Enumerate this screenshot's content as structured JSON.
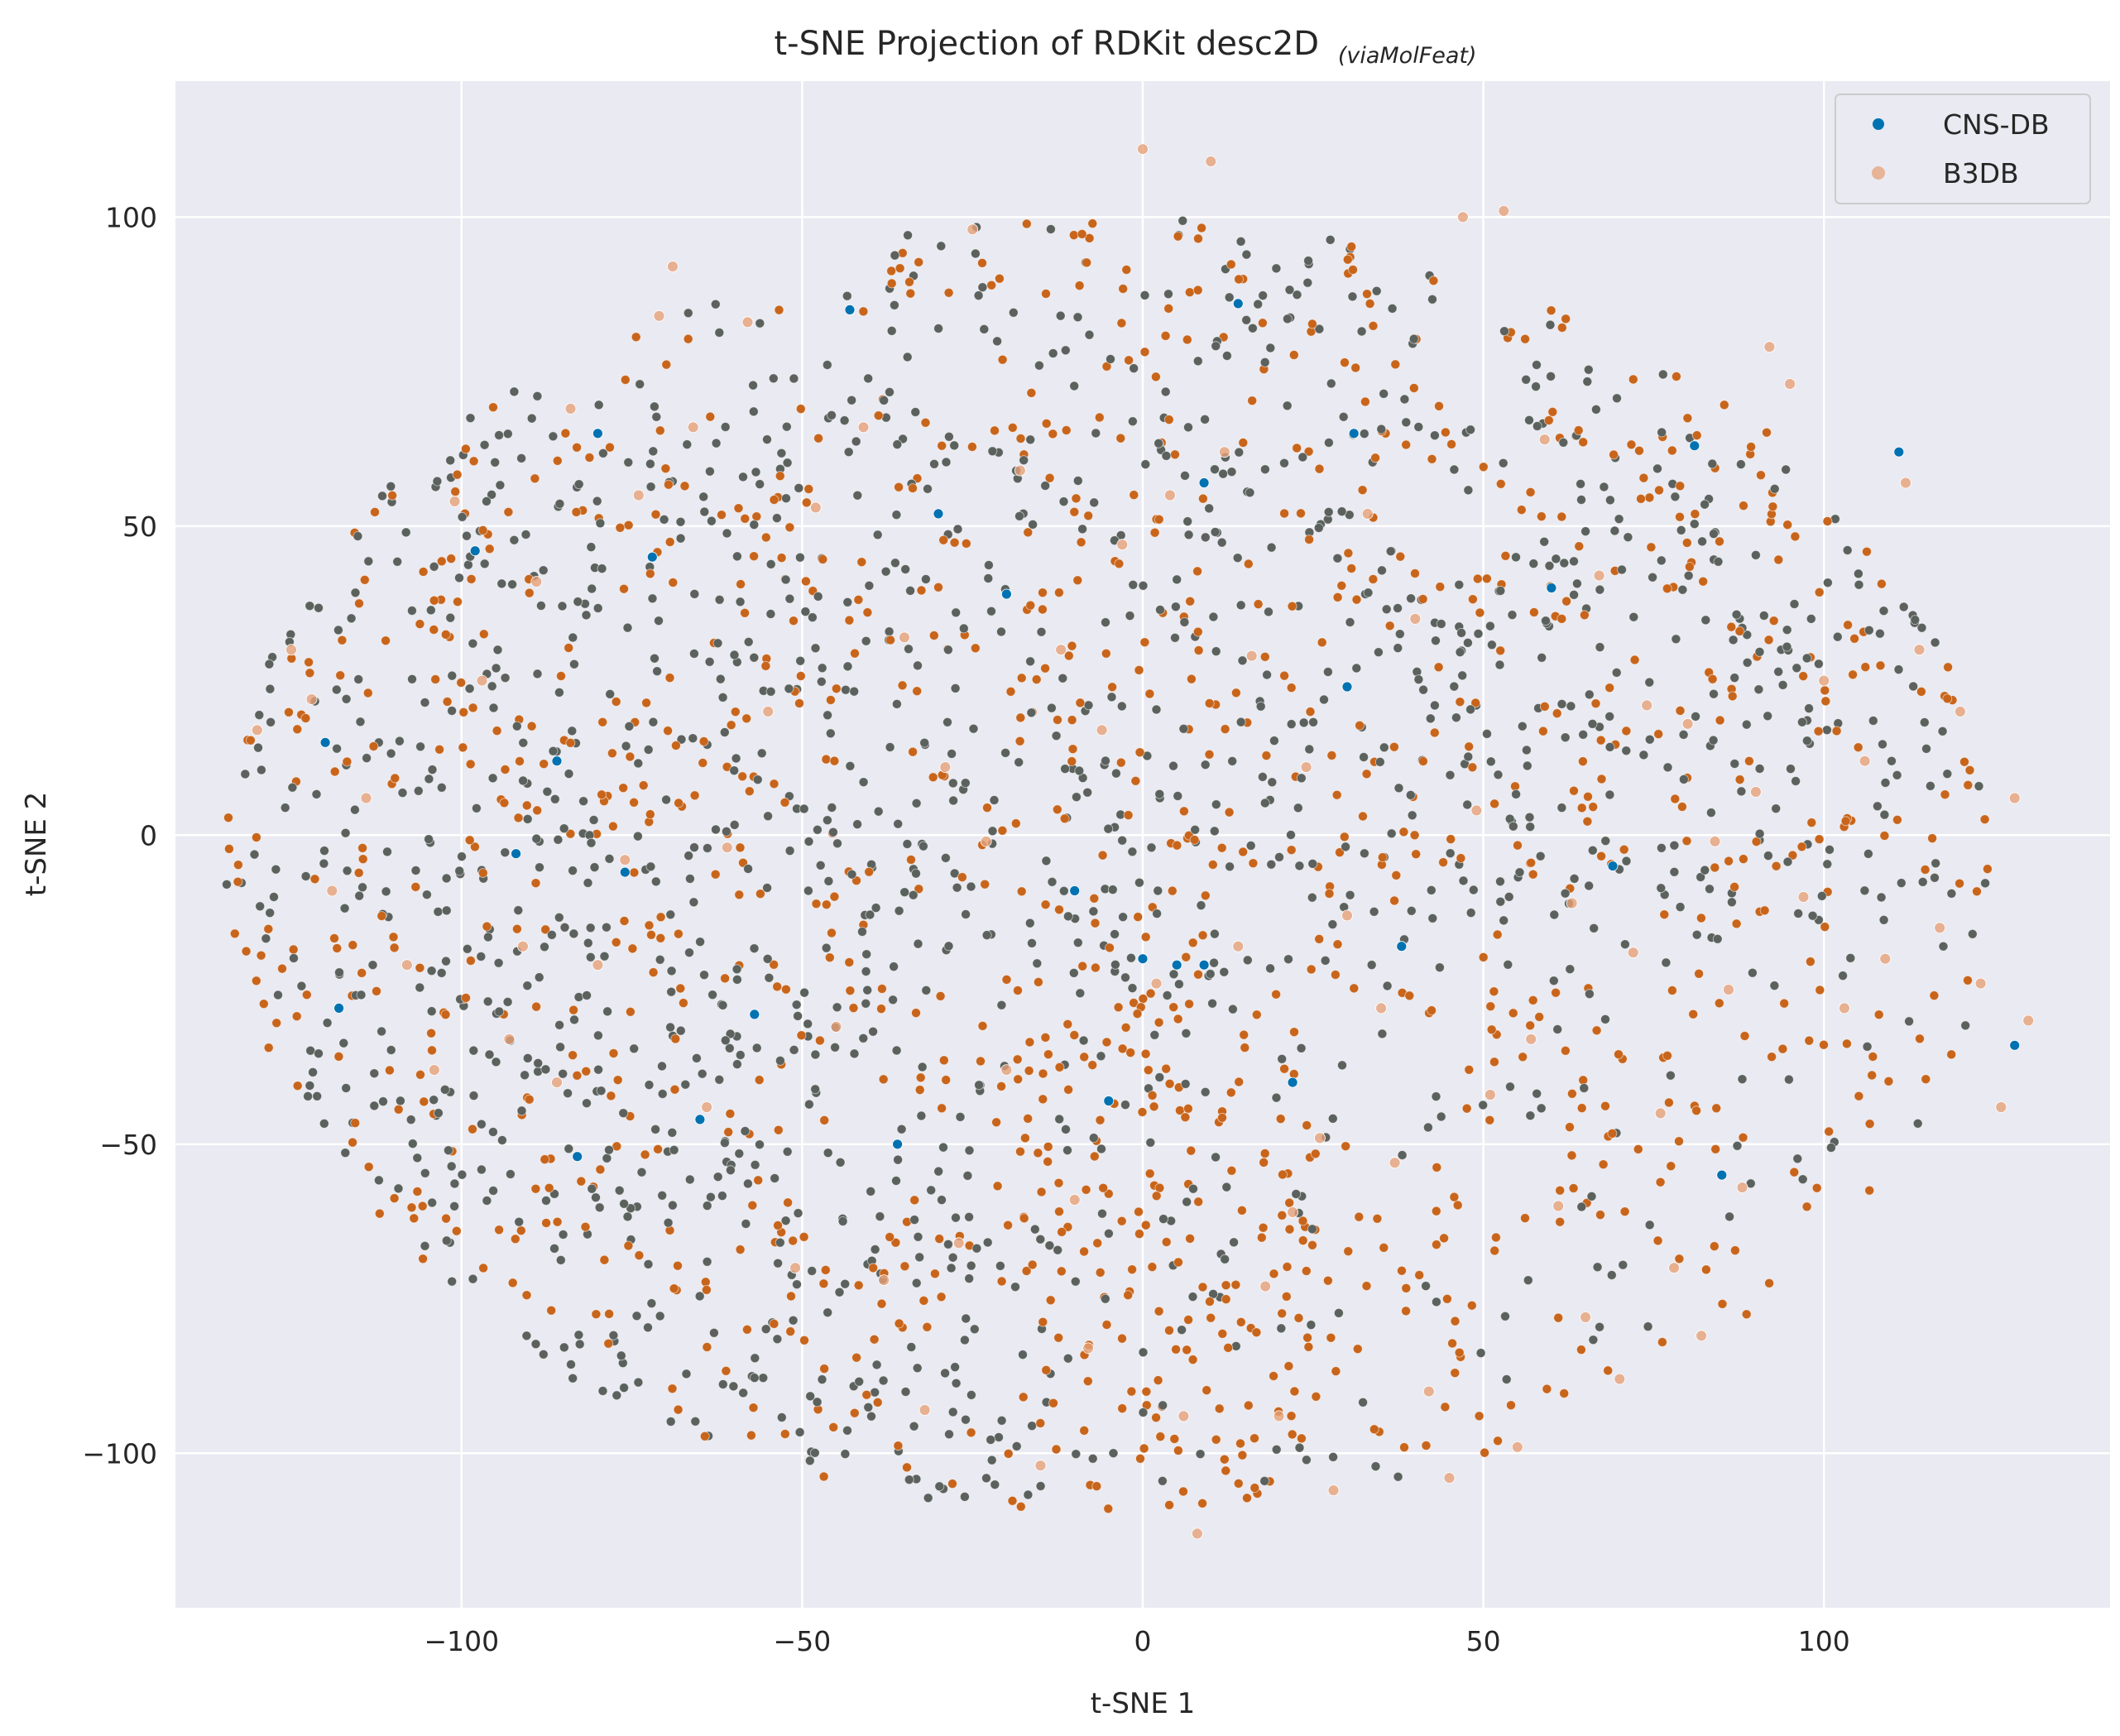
{
  "chart_data": {
    "type": "scatter",
    "title": "t-SNE Projection of RDKit desc2D",
    "title_suffix": "(viaMolFeat)",
    "xlabel": "t-SNE 1",
    "ylabel": "t-SNE 2",
    "xlim": [
      -142,
      142
    ],
    "ylim": [
      -125,
      122
    ],
    "xticks": [
      -100,
      -50,
      0,
      50,
      100
    ],
    "yticks": [
      -100,
      -50,
      0,
      50,
      100
    ],
    "xtick_labels": [
      "−100",
      "−50",
      "0",
      "50",
      "100"
    ],
    "ytick_labels": [
      "−100",
      "−50",
      "0",
      "50",
      "100"
    ],
    "grid": true,
    "legend_position": "top-right",
    "colors": {
      "background": "#eaeaf2",
      "grid": "#ffffff",
      "cns": "#0072b2",
      "b3db": "#e6a178",
      "overlap_gray": "#5b625e",
      "overlap_orange": "#c8651b"
    },
    "series": [
      {
        "name": "CNS-DB",
        "color": "#0072b2",
        "points": [
          [
            -120,
            15
          ],
          [
            -118,
            -28
          ],
          [
            -98,
            46
          ],
          [
            -92,
            -3
          ],
          [
            -86,
            12
          ],
          [
            -83,
            -52
          ],
          [
            -80,
            65
          ],
          [
            -76,
            -6
          ],
          [
            -72,
            45
          ],
          [
            -65,
            -46
          ],
          [
            -57,
            -29
          ],
          [
            -43,
            85
          ],
          [
            -36,
            -50
          ],
          [
            -30,
            52
          ],
          [
            -20,
            39
          ],
          [
            -10,
            -9
          ],
          [
            -5,
            -43
          ],
          [
            0,
            -20
          ],
          [
            5,
            -21
          ],
          [
            9,
            57
          ],
          [
            9,
            -21
          ],
          [
            14,
            86
          ],
          [
            22,
            -40
          ],
          [
            30,
            24
          ],
          [
            31,
            65
          ],
          [
            38,
            -18
          ],
          [
            60,
            40
          ],
          [
            69,
            -5
          ],
          [
            81,
            63
          ],
          [
            85,
            -55
          ],
          [
            111,
            62
          ],
          [
            128,
            -34
          ]
        ]
      },
      {
        "name": "B3DB",
        "color": "#e6a178",
        "points": [
          [
            -130,
            17
          ],
          [
            -125,
            30
          ],
          [
            -122,
            22
          ],
          [
            -119,
            -9
          ],
          [
            -114,
            6
          ],
          [
            -108,
            -21
          ],
          [
            -104,
            -38
          ],
          [
            -101,
            54
          ],
          [
            -97,
            25
          ],
          [
            -93,
            -33
          ],
          [
            -91,
            -18
          ],
          [
            -89,
            41
          ],
          [
            -86,
            -40
          ],
          [
            -84,
            69
          ],
          [
            -80,
            -21
          ],
          [
            -76,
            -4
          ],
          [
            -74,
            55
          ],
          [
            -71,
            84
          ],
          [
            -69,
            92
          ],
          [
            -66,
            66
          ],
          [
            -64,
            -44
          ],
          [
            -61,
            -2
          ],
          [
            -58,
            83
          ],
          [
            -55,
            20
          ],
          [
            -51,
            -70
          ],
          [
            -48,
            53
          ],
          [
            -45,
            -31
          ],
          [
            -41,
            66
          ],
          [
            -38,
            -72
          ],
          [
            -35,
            32
          ],
          [
            -32,
            -93
          ],
          [
            -29,
            11
          ],
          [
            -27,
            -66
          ],
          [
            -25,
            98
          ],
          [
            -23,
            -1
          ],
          [
            -20,
            -38
          ],
          [
            -18,
            59
          ],
          [
            -15,
            -102
          ],
          [
            -12,
            30
          ],
          [
            -10,
            -59
          ],
          [
            -8,
            -83
          ],
          [
            -6,
            17
          ],
          [
            -3,
            47
          ],
          [
            0,
            111
          ],
          [
            2,
            -24
          ],
          [
            4,
            55
          ],
          [
            6,
            -94
          ],
          [
            8,
            -113
          ],
          [
            10,
            109
          ],
          [
            12,
            62
          ],
          [
            14,
            -18
          ],
          [
            16,
            29
          ],
          [
            18,
            -73
          ],
          [
            20,
            -94
          ],
          [
            22,
            -61
          ],
          [
            24,
            11
          ],
          [
            26,
            -49
          ],
          [
            28,
            -106
          ],
          [
            30,
            -13
          ],
          [
            33,
            52
          ],
          [
            35,
            -28
          ],
          [
            37,
            -53
          ],
          [
            40,
            35
          ],
          [
            42,
            -90
          ],
          [
            45,
            -104
          ],
          [
            47,
            100
          ],
          [
            49,
            4
          ],
          [
            51,
            -42
          ],
          [
            53,
            101
          ],
          [
            55,
            -99
          ],
          [
            57,
            -33
          ],
          [
            59,
            64
          ],
          [
            61,
            -60
          ],
          [
            63,
            -11
          ],
          [
            65,
            -78
          ],
          [
            67,
            42
          ],
          [
            70,
            -88
          ],
          [
            72,
            -19
          ],
          [
            74,
            21
          ],
          [
            76,
            -45
          ],
          [
            78,
            -70
          ],
          [
            80,
            18
          ],
          [
            82,
            -81
          ],
          [
            84,
            -1
          ],
          [
            86,
            -25
          ],
          [
            88,
            -57
          ],
          [
            90,
            7
          ],
          [
            92,
            79
          ],
          [
            95,
            73
          ],
          [
            97,
            -10
          ],
          [
            100,
            25
          ],
          [
            103,
            -28
          ],
          [
            106,
            12
          ],
          [
            109,
            -20
          ],
          [
            112,
            57
          ],
          [
            114,
            30
          ],
          [
            117,
            -15
          ],
          [
            120,
            20
          ],
          [
            123,
            -24
          ],
          [
            126,
            -44
          ],
          [
            128,
            6
          ],
          [
            130,
            -30
          ]
        ]
      }
    ]
  }
}
